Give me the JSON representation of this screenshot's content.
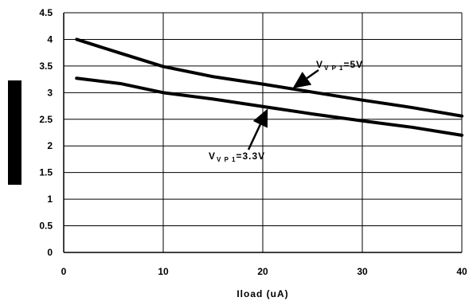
{
  "chart_data": {
    "type": "line",
    "xlabel": "Iload (uA)",
    "ylabel": "",
    "xlim": [
      0,
      40
    ],
    "ylim": [
      0,
      4.5
    ],
    "x_ticks": [
      "0",
      "10",
      "20",
      "30",
      "40"
    ],
    "y_ticks": [
      "0",
      "0.5",
      "1",
      "1.5",
      "2",
      "2.5",
      "3",
      "3.5",
      "4",
      "4.5"
    ],
    "grid": true,
    "series": [
      {
        "name": "VVP1=5V",
        "x": [
          1.3,
          5.7,
          10,
          15,
          20,
          25,
          30,
          35,
          40
        ],
        "y": [
          4.0,
          3.74,
          3.49,
          3.3,
          3.16,
          3.01,
          2.86,
          2.72,
          2.56
        ]
      },
      {
        "name": "VVP1=3.3V",
        "x": [
          1.3,
          5.7,
          10,
          15,
          20,
          25,
          30,
          35,
          40
        ],
        "y": [
          3.27,
          3.17,
          3.0,
          2.88,
          2.74,
          2.6,
          2.47,
          2.35,
          2.2
        ]
      }
    ],
    "annotations": [
      {
        "label_main": "V",
        "label_sub": "VP1",
        "label_rest": "=5V",
        "arrow_to": [
          23,
          3.08
        ]
      },
      {
        "label_main": "V",
        "label_sub": "VP1",
        "label_rest": "=3.3V",
        "arrow_to": [
          20.5,
          2.7
        ]
      }
    ]
  }
}
